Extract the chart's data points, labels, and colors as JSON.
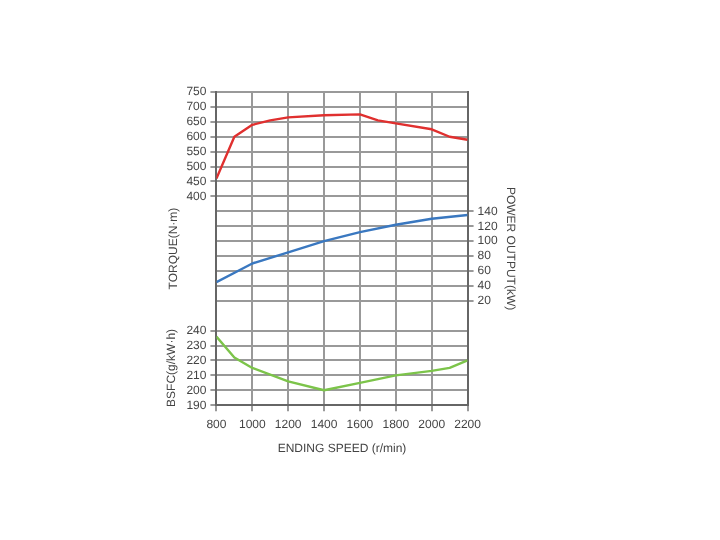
{
  "chart_data": {
    "type": "line",
    "xlabel": "ENDING SPEED (r/min)",
    "ylabel": "TORQUE(N·m)",
    "y2label": "POWER OUTPUT(kW)",
    "y3label": "BSFC(g/kW·h)",
    "xlim": [
      800,
      2200
    ],
    "xticks": [
      800,
      1000,
      1200,
      1400,
      1600,
      1800,
      2000,
      2200
    ],
    "ylim": [
      -300,
      750
    ],
    "yticks": [
      400,
      450,
      500,
      550,
      600,
      650,
      700,
      750
    ],
    "y2lim": [
      -120,
      300
    ],
    "y2ticks": [
      20,
      40,
      60,
      80,
      100,
      120,
      140
    ],
    "y3lim": [
      190,
      400
    ],
    "y3ticks": [
      190,
      200,
      210,
      220,
      230,
      240
    ],
    "grid": true,
    "marker": "none",
    "line_style": "solid",
    "series": [
      {
        "color": "#e0302f",
        "x": [
          800,
          900,
          1000,
          1100,
          1200,
          1400,
          1600,
          1700,
          1800,
          2000,
          2100,
          2200
        ],
        "values": [
          460,
          600,
          640,
          655,
          665,
          672,
          675,
          655,
          645,
          625,
          600,
          590
        ]
      },
      {
        "color": "#3a78c0",
        "axis": "y2",
        "x": [
          800,
          1000,
          1200,
          1400,
          1600,
          1800,
          2000,
          2200
        ],
        "values": [
          45,
          70,
          85,
          100,
          112,
          122,
          130,
          135
        ]
      },
      {
        "color": "#7cc44a",
        "axis": "y3",
        "x": [
          800,
          900,
          1000,
          1200,
          1400,
          1600,
          1800,
          2000,
          2100,
          2200
        ],
        "values": [
          236,
          222,
          215,
          206,
          200,
          205,
          210,
          213,
          215,
          220
        ]
      }
    ]
  }
}
